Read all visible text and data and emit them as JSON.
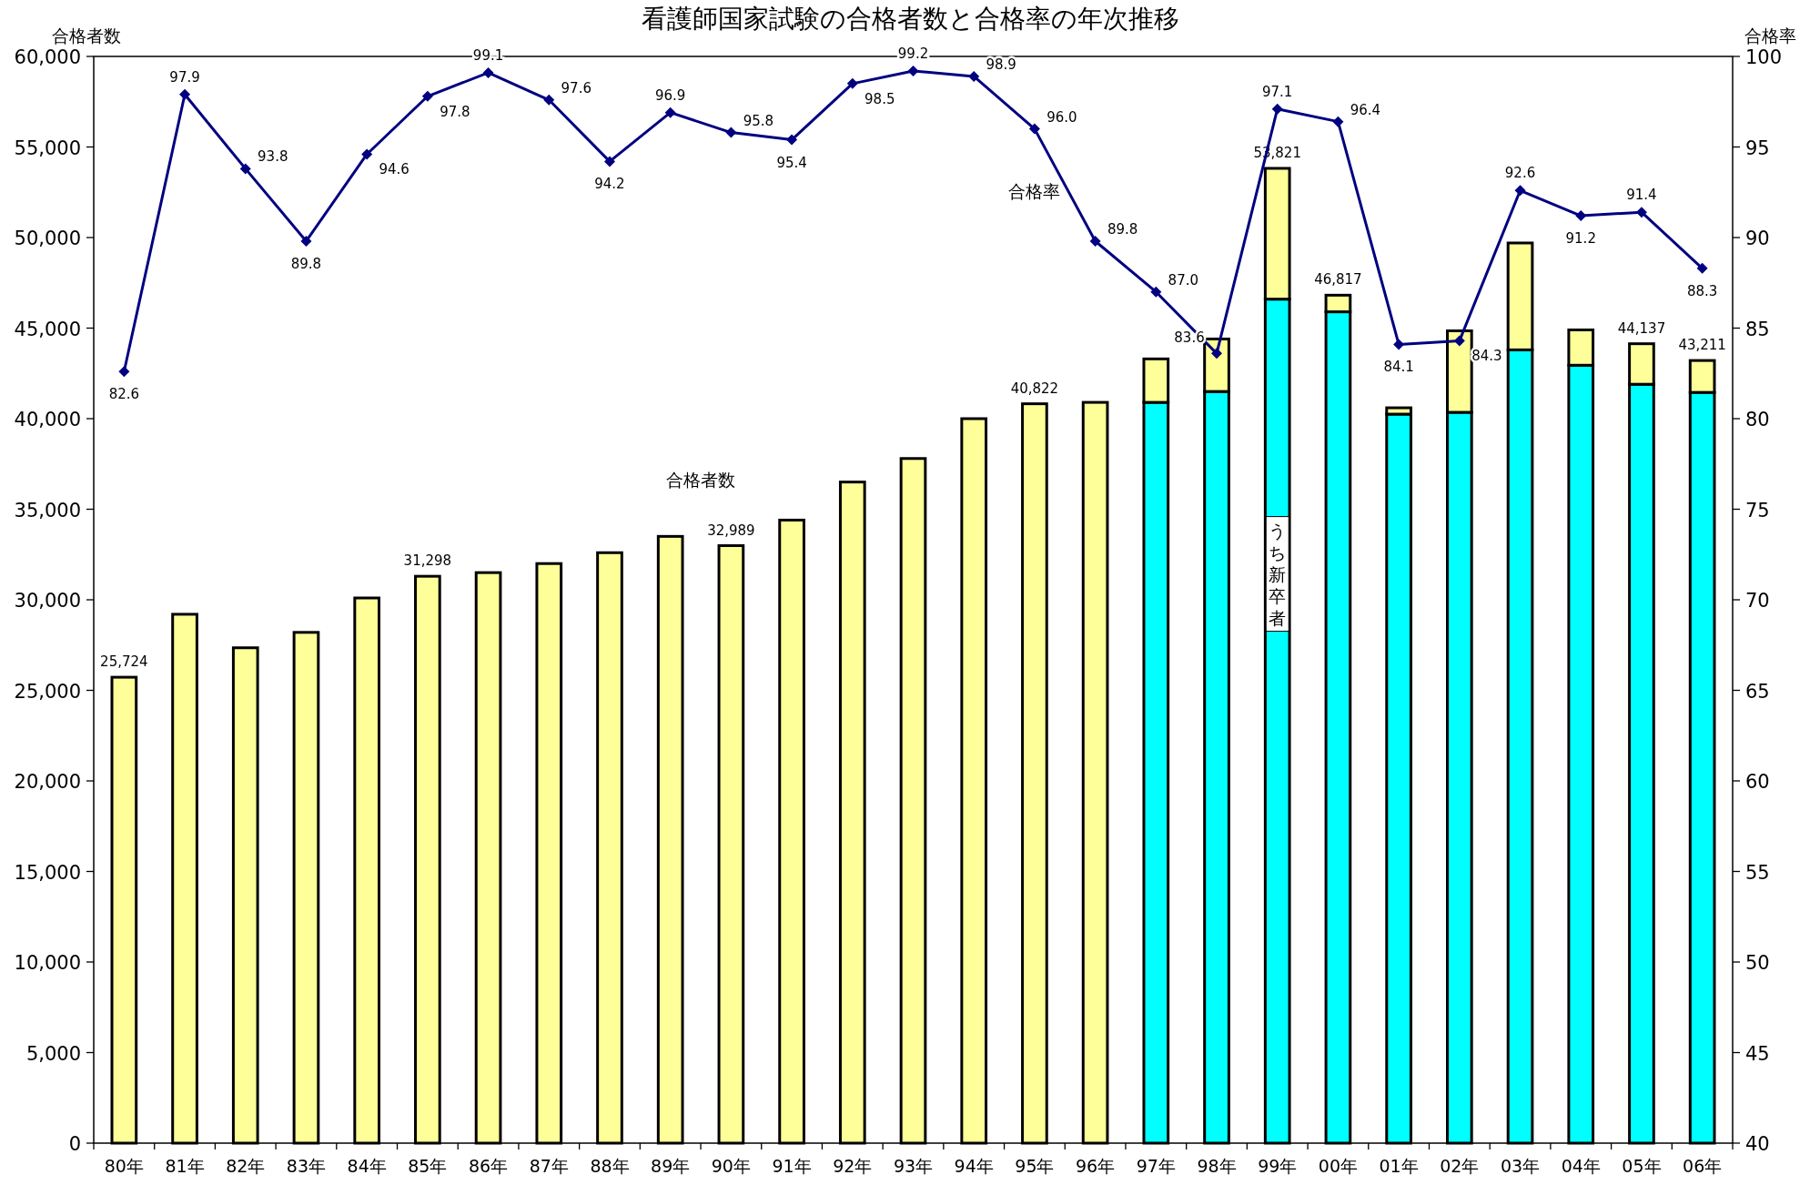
{
  "chart_data": {
    "type": "bar",
    "stacked": true,
    "title": "看護師国家試験の合格者数と合格率の年次推移",
    "ylabel": "合格者数",
    "y2label": "合格率",
    "categories": [
      "80年",
      "81年",
      "82年",
      "83年",
      "84年",
      "85年",
      "86年",
      "87年",
      "88年",
      "89年",
      "90年",
      "91年",
      "92年",
      "93年",
      "94年",
      "95年",
      "96年",
      "97年",
      "98年",
      "99年",
      "00年",
      "01年",
      "02年",
      "03年",
      "04年",
      "05年",
      "06年"
    ],
    "series": [
      {
        "name": "うち新卒者",
        "color": "#00ffff",
        "values": [
          null,
          null,
          null,
          null,
          null,
          null,
          null,
          null,
          null,
          null,
          null,
          null,
          null,
          null,
          null,
          null,
          null,
          40900,
          41500,
          46600,
          45900,
          40250,
          40350,
          43800,
          42950,
          41900,
          41450
        ]
      },
      {
        "name": "合格者数",
        "color": "#ffff99",
        "values": [
          25724,
          29200,
          27350,
          28200,
          30100,
          31298,
          31500,
          32000,
          32600,
          33500,
          32989,
          34400,
          36500,
          37800,
          40000,
          40822,
          40900,
          2400,
          2900,
          7221,
          917,
          350,
          4500,
          5900,
          1950,
          2237,
          1761
        ]
      },
      {
        "name": "合格率",
        "type": "line",
        "axis": "y2",
        "color": "#000080",
        "marker": "diamond",
        "values": [
          82.6,
          97.9,
          93.8,
          89.8,
          94.6,
          97.8,
          99.1,
          97.6,
          94.2,
          96.9,
          95.8,
          95.4,
          98.5,
          99.2,
          98.9,
          96.0,
          89.8,
          87.0,
          83.6,
          97.1,
          96.4,
          84.1,
          84.3,
          92.6,
          91.2,
          91.4,
          88.3
        ],
        "value_labels": [
          "82.6",
          "97.9",
          "93.8",
          "89.8",
          "94.6",
          "97.8",
          "99.1",
          "97.6",
          "94.2",
          "96.9",
          "95.8",
          "95.4",
          "98.5",
          "99.2",
          "98.9",
          "96.0",
          "89.8",
          "87.0",
          "83.6",
          "97.1",
          "96.4",
          "84.1",
          "84.3",
          "92.6",
          "91.2",
          "91.4",
          "88.3"
        ]
      }
    ],
    "totals": [
      "25,724",
      null,
      null,
      null,
      null,
      "31,298",
      null,
      null,
      null,
      null,
      "32,989",
      null,
      null,
      null,
      null,
      "40,822",
      null,
      null,
      null,
      "53,821",
      "46,817",
      null,
      null,
      null,
      null,
      "44,137",
      "43,211"
    ],
    "ylim": [
      0,
      60000
    ],
    "yticks": [
      0,
      {
        "value": 5000,
        "label": "5,000"
      },
      {
        "value": 10000,
        "label": "10,000"
      },
      {
        "value": 15000,
        "label": "15,000"
      },
      {
        "value": 20000,
        "label": "20,000"
      },
      {
        "value": 25000,
        "label": "25,000"
      },
      {
        "value": 30000,
        "label": "30,000"
      },
      {
        "value": 35000,
        "label": "35,000"
      },
      {
        "value": 40000,
        "label": "40,000"
      },
      {
        "value": 45000,
        "label": "45,000"
      },
      {
        "value": 50000,
        "label": "50,000"
      },
      {
        "value": 55000,
        "label": "55,000"
      },
      {
        "value": 60000,
        "label": "60,000"
      }
    ],
    "y2lim": [
      40,
      100
    ],
    "y2ticks": [
      40,
      45,
      50,
      55,
      60,
      65,
      70,
      75,
      80,
      85,
      90,
      95,
      100
    ]
  }
}
